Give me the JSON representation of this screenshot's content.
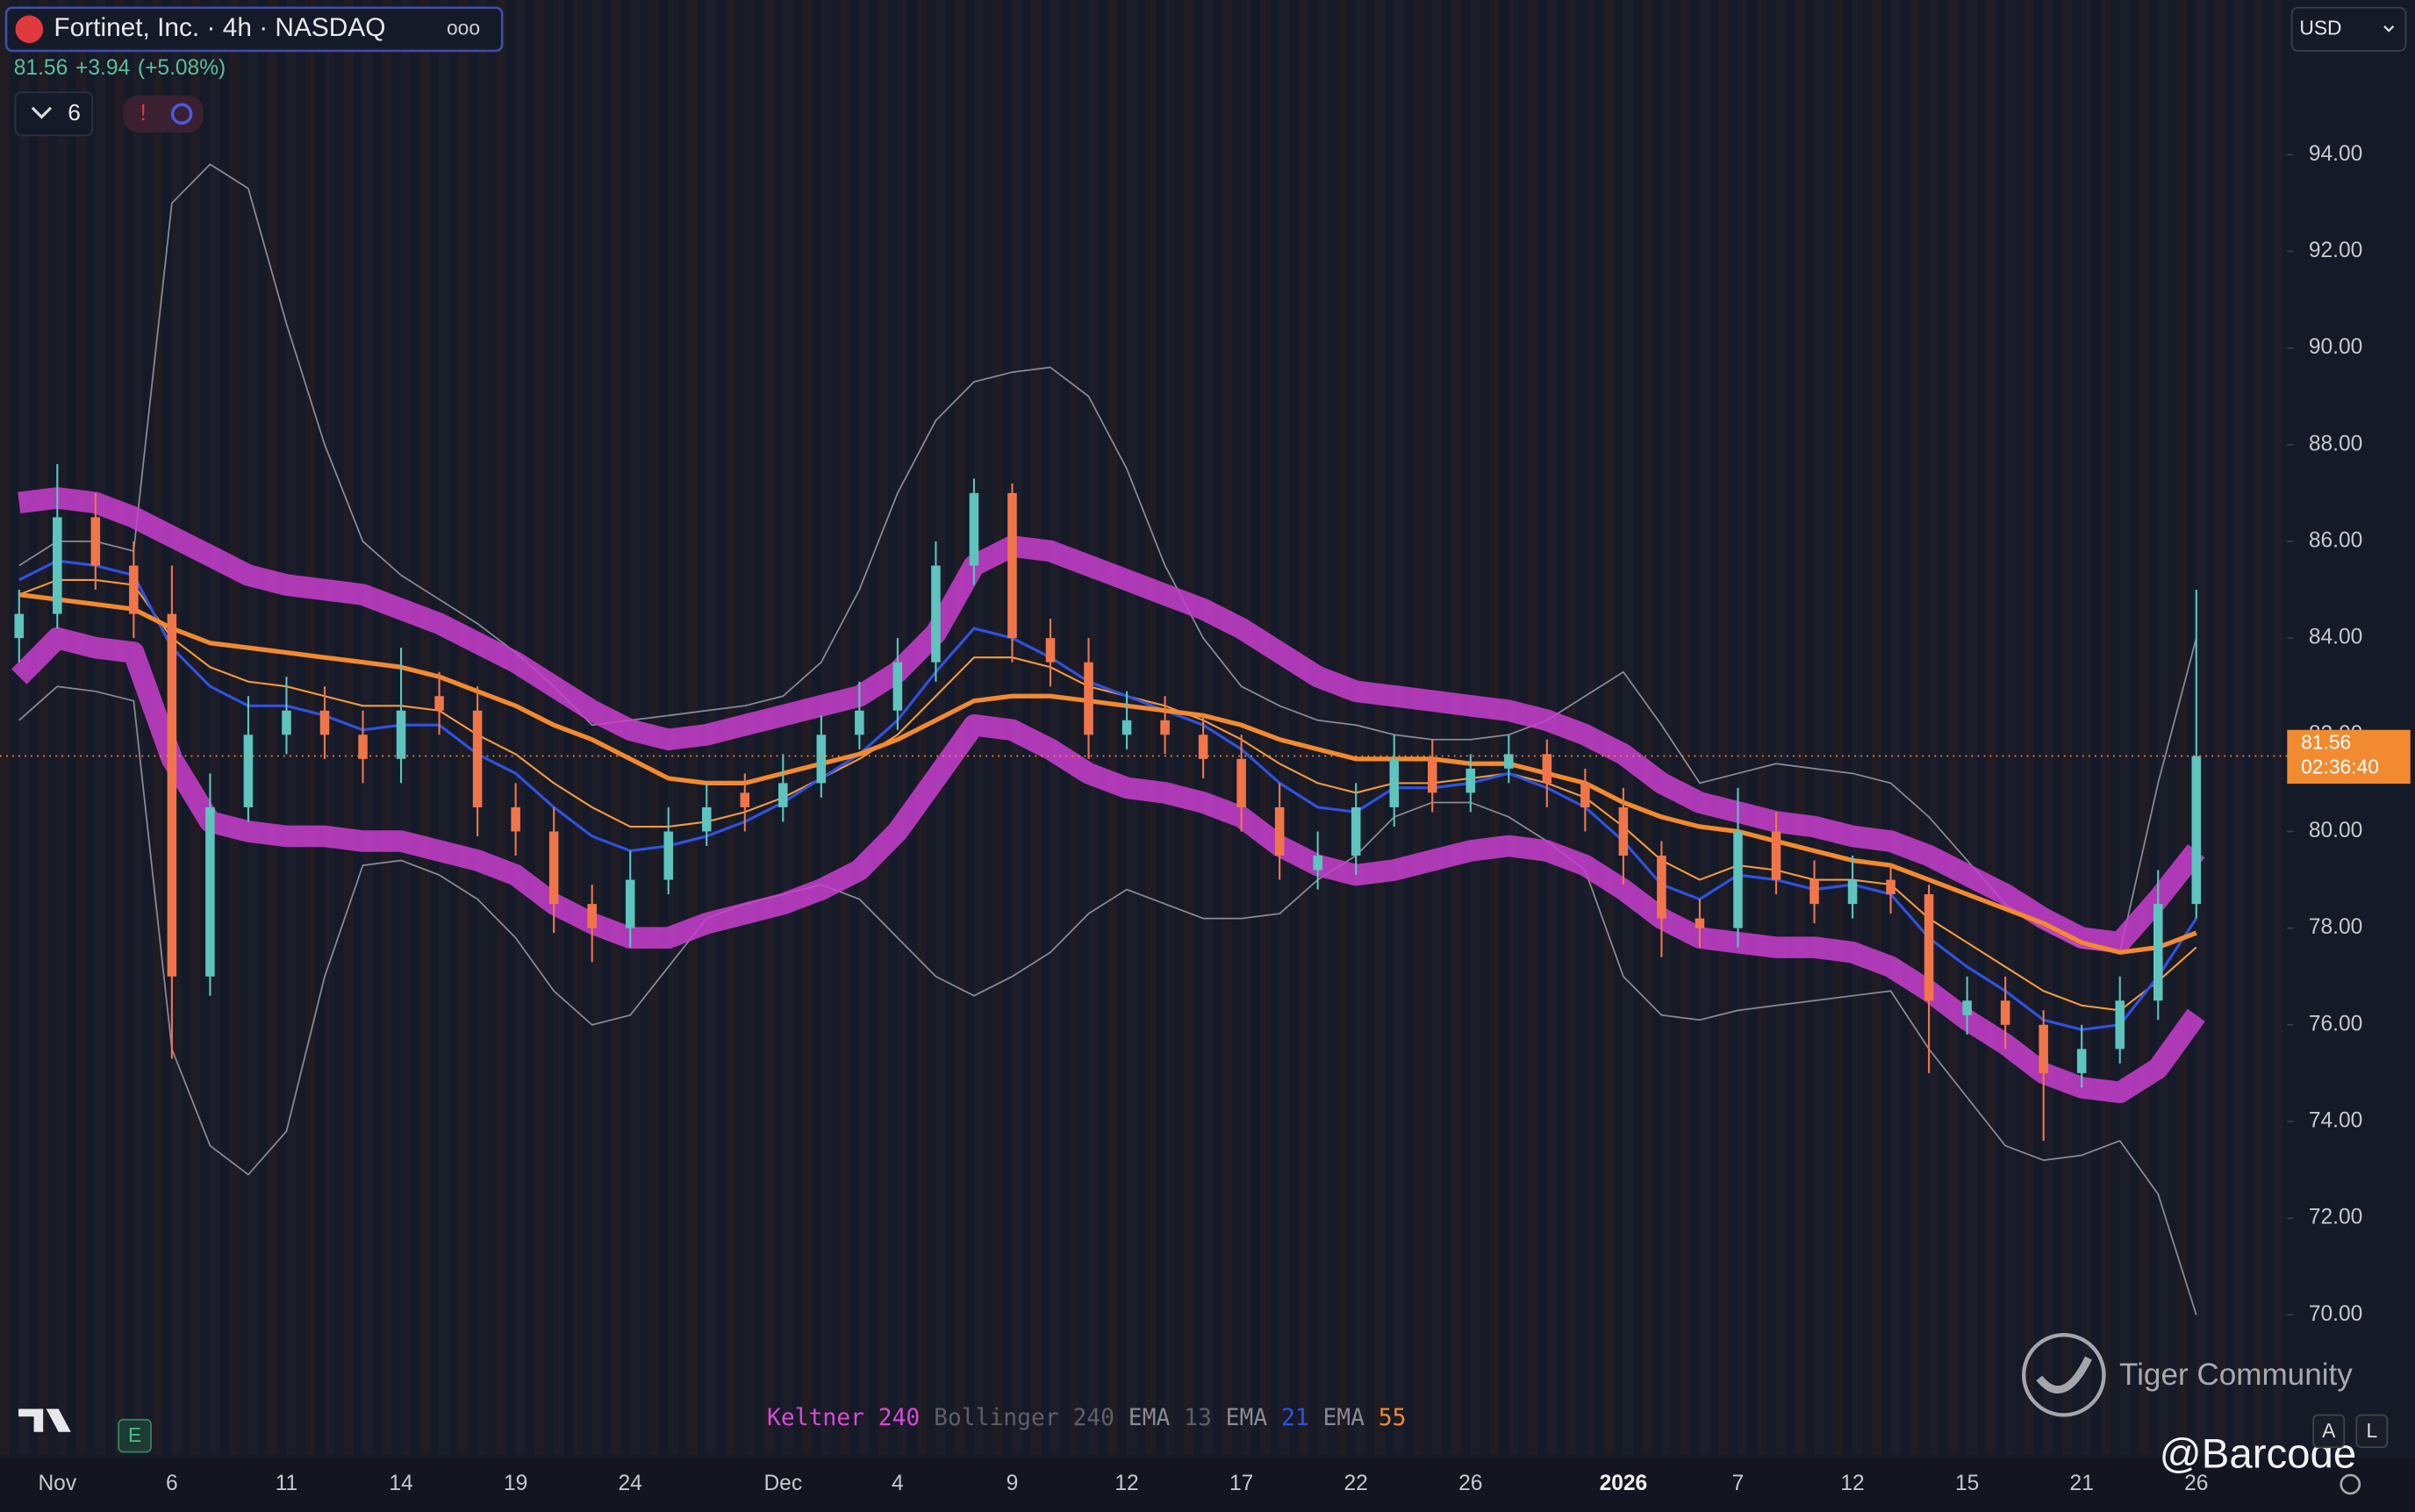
{
  "header": {
    "title": "Fortinet, Inc. · 4h · NASDAQ",
    "change": "+3.94",
    "change_pct": "(+5.08%)",
    "indicator_count": 6,
    "currency": "USD"
  },
  "chart_data": {
    "type": "candlestick",
    "categories": [
      null,
      "Nov",
      null,
      null,
      "6",
      null,
      null,
      "11",
      null,
      null,
      "14",
      null,
      null,
      "19",
      null,
      null,
      "24",
      null,
      null,
      null,
      "Dec",
      null,
      null,
      "4",
      null,
      null,
      "9",
      null,
      null,
      "12",
      null,
      null,
      "17",
      null,
      null,
      "22",
      null,
      null,
      "26",
      null,
      null,
      null,
      "2026",
      null,
      null,
      "7",
      null,
      null,
      "12",
      null,
      null,
      "15",
      null,
      null,
      "21",
      null,
      null,
      "26"
    ],
    "open": [
      84.0,
      84.5,
      86.5,
      85.5,
      84.5,
      77.0,
      80.5,
      82.0,
      82.5,
      82.0,
      81.5,
      82.8,
      82.5,
      80.5,
      80.0,
      78.5,
      78.0,
      79.0,
      80.0,
      80.8,
      80.5,
      81.0,
      82.0,
      82.5,
      83.5,
      85.5,
      87.0,
      84.0,
      83.5,
      82.0,
      82.3,
      82.0,
      81.5,
      80.5,
      79.2,
      79.5,
      80.5,
      81.5,
      80.8,
      81.3,
      81.6,
      81.0,
      80.5,
      79.5,
      78.2,
      78.0,
      80.0,
      79.0,
      78.5,
      79.0,
      78.7,
      76.2,
      76.5,
      76.0,
      75.0,
      75.5,
      76.5,
      78.5
    ],
    "high": [
      85.0,
      87.6,
      87.0,
      86.0,
      85.5,
      81.2,
      82.8,
      83.2,
      83.0,
      82.5,
      83.8,
      83.3,
      83.0,
      81.0,
      80.5,
      78.9,
      79.6,
      80.5,
      81.0,
      81.2,
      81.6,
      82.4,
      83.1,
      84.0,
      86.0,
      87.3,
      87.2,
      84.4,
      84.0,
      82.9,
      82.8,
      82.4,
      82.0,
      81.0,
      80.0,
      81.0,
      82.0,
      81.9,
      81.6,
      82.0,
      81.9,
      81.3,
      80.9,
      79.8,
      78.6,
      80.9,
      80.4,
      79.4,
      79.5,
      79.3,
      78.9,
      77.0,
      77.0,
      76.3,
      76.0,
      77.0,
      79.2,
      85.0
    ],
    "low": [
      83.5,
      84.2,
      85.0,
      84.0,
      75.3,
      76.6,
      80.2,
      81.6,
      81.5,
      81.0,
      81.0,
      82.0,
      79.9,
      79.5,
      77.9,
      77.3,
      77.6,
      78.7,
      79.7,
      80.0,
      80.2,
      80.7,
      81.7,
      82.1,
      83.1,
      85.1,
      83.5,
      83.0,
      81.5,
      81.7,
      81.6,
      81.1,
      80.0,
      79.0,
      78.8,
      79.1,
      80.1,
      80.4,
      80.4,
      81.0,
      80.5,
      80.0,
      78.9,
      77.4,
      77.6,
      77.6,
      78.7,
      78.1,
      78.2,
      78.3,
      75.0,
      75.8,
      75.5,
      73.6,
      74.7,
      75.2,
      76.1,
      78.2
    ],
    "close": [
      84.5,
      86.5,
      85.5,
      84.5,
      77.0,
      80.5,
      82.0,
      82.5,
      82.0,
      81.5,
      82.5,
      82.5,
      80.5,
      80.0,
      78.5,
      78.0,
      79.0,
      80.0,
      80.5,
      80.5,
      81.0,
      82.0,
      82.5,
      83.5,
      85.5,
      87.0,
      84.0,
      83.5,
      82.0,
      82.3,
      82.0,
      81.5,
      80.5,
      79.5,
      79.5,
      80.5,
      81.5,
      80.8,
      81.3,
      81.6,
      81.0,
      80.5,
      79.5,
      78.2,
      78.0,
      80.0,
      79.0,
      78.5,
      79.0,
      78.7,
      76.5,
      76.5,
      76.0,
      75.0,
      75.5,
      76.5,
      78.5,
      81.56
    ],
    "up_color": "#5ec4bd",
    "down_color": "#f0764a",
    "price_line_color": "#f28a30",
    "countdown": "02:36:40",
    "series": [
      {
        "color": "#8a8a94",
        "width": 1,
        "values": [
          85.5,
          86.0,
          86.0,
          85.8,
          93.0,
          93.8,
          93.3,
          90.5,
          88.0,
          86.0,
          85.3,
          84.8,
          84.3,
          83.7,
          83.0,
          82.2,
          82.3,
          82.4,
          82.5,
          82.6,
          82.8,
          83.5,
          85.0,
          87.0,
          88.5,
          89.3,
          89.5,
          89.6,
          89.0,
          87.5,
          85.5,
          84.0,
          83.0,
          82.6,
          82.3,
          82.2,
          82.0,
          81.9,
          81.9,
          82.0,
          82.3,
          82.8,
          83.3,
          82.2,
          81.0,
          81.2,
          81.4,
          81.3,
          81.2,
          81.0,
          80.3,
          79.4,
          78.5,
          78.0,
          77.6,
          77.5,
          81.0,
          84.0
        ]
      },
      {
        "color": "#8a8a94",
        "width": 1,
        "values": [
          82.3,
          83.0,
          82.9,
          82.7,
          75.5,
          73.5,
          72.9,
          73.8,
          77.0,
          79.3,
          79.4,
          79.1,
          78.6,
          77.8,
          76.7,
          76.0,
          76.2,
          77.2,
          78.2,
          78.5,
          78.7,
          78.9,
          78.6,
          77.8,
          77.0,
          76.6,
          77.0,
          77.5,
          78.3,
          78.8,
          78.5,
          78.2,
          78.2,
          78.3,
          79.0,
          79.5,
          80.3,
          80.6,
          80.6,
          80.3,
          79.8,
          79.2,
          77.0,
          76.2,
          76.1,
          76.3,
          76.4,
          76.5,
          76.6,
          76.7,
          75.5,
          74.5,
          73.5,
          73.2,
          73.3,
          73.6,
          72.5,
          70.0
        ]
      },
      {
        "color": "#c93fcf",
        "width": 14,
        "values": [
          86.8,
          86.9,
          86.8,
          86.5,
          86.1,
          85.7,
          85.3,
          85.1,
          85.0,
          84.9,
          84.6,
          84.3,
          83.9,
          83.5,
          83.0,
          82.5,
          82.1,
          81.9,
          82.0,
          82.2,
          82.4,
          82.6,
          82.8,
          83.3,
          84.1,
          85.5,
          85.9,
          85.8,
          85.5,
          85.2,
          84.9,
          84.6,
          84.2,
          83.7,
          83.2,
          82.9,
          82.8,
          82.7,
          82.6,
          82.5,
          82.3,
          82.0,
          81.6,
          81.0,
          80.6,
          80.4,
          80.2,
          80.1,
          79.9,
          79.8,
          79.5,
          79.1,
          78.7,
          78.2,
          77.8,
          77.7,
          78.6,
          79.6
        ]
      },
      {
        "color": "#c93fcf",
        "width": 14,
        "values": [
          83.2,
          84.0,
          83.8,
          83.7,
          81.5,
          80.2,
          80.0,
          79.9,
          79.9,
          79.8,
          79.8,
          79.6,
          79.4,
          79.1,
          78.5,
          78.1,
          77.8,
          77.8,
          78.1,
          78.3,
          78.5,
          78.8,
          79.2,
          80.0,
          81.1,
          82.2,
          82.1,
          81.7,
          81.2,
          80.9,
          80.8,
          80.6,
          80.3,
          79.7,
          79.3,
          79.1,
          79.2,
          79.4,
          79.6,
          79.7,
          79.6,
          79.3,
          78.8,
          78.2,
          77.8,
          77.7,
          77.6,
          77.6,
          77.5,
          77.2,
          76.7,
          76.1,
          75.6,
          75.0,
          74.7,
          74.6,
          75.1,
          76.2
        ]
      },
      {
        "color": "#f39a3d",
        "width": 1.2,
        "values": [
          84.9,
          85.2,
          85.2,
          85.1,
          84.0,
          83.4,
          83.1,
          83.0,
          82.8,
          82.6,
          82.6,
          82.5,
          82.0,
          81.6,
          81.0,
          80.5,
          80.1,
          80.1,
          80.2,
          80.4,
          80.7,
          81.1,
          81.5,
          82.0,
          82.8,
          83.6,
          83.6,
          83.4,
          83.0,
          82.8,
          82.6,
          82.3,
          81.9,
          81.4,
          81.0,
          80.8,
          81.0,
          81.0,
          81.1,
          81.2,
          81.0,
          80.7,
          80.1,
          79.4,
          79.0,
          79.3,
          79.2,
          79.0,
          79.0,
          78.9,
          78.2,
          77.7,
          77.2,
          76.7,
          76.4,
          76.3,
          76.9,
          77.6
        ]
      },
      {
        "color": "#2f52e0",
        "width": 1.8,
        "values": [
          85.2,
          85.6,
          85.5,
          85.3,
          83.8,
          83.0,
          82.6,
          82.6,
          82.4,
          82.1,
          82.2,
          82.2,
          81.6,
          81.2,
          80.5,
          79.9,
          79.6,
          79.7,
          79.9,
          80.2,
          80.6,
          81.1,
          81.6,
          82.3,
          83.3,
          84.2,
          84.0,
          83.6,
          83.1,
          82.8,
          82.5,
          82.2,
          81.7,
          81.0,
          80.5,
          80.4,
          80.9,
          80.9,
          81.0,
          81.2,
          80.9,
          80.5,
          79.8,
          78.9,
          78.6,
          79.1,
          79.0,
          78.8,
          78.9,
          78.7,
          77.8,
          77.2,
          76.7,
          76.1,
          75.9,
          76.0,
          77.0,
          78.2
        ]
      },
      {
        "color": "#f28a30",
        "width": 3,
        "values": [
          84.9,
          84.8,
          84.7,
          84.6,
          84.2,
          83.9,
          83.8,
          83.7,
          83.6,
          83.5,
          83.4,
          83.2,
          82.9,
          82.6,
          82.2,
          81.9,
          81.5,
          81.1,
          81.0,
          81.0,
          81.2,
          81.4,
          81.6,
          81.9,
          82.3,
          82.7,
          82.8,
          82.8,
          82.7,
          82.6,
          82.5,
          82.4,
          82.2,
          81.9,
          81.7,
          81.5,
          81.5,
          81.5,
          81.4,
          81.4,
          81.2,
          81.0,
          80.6,
          80.3,
          80.1,
          80.0,
          79.8,
          79.6,
          79.4,
          79.3,
          79.0,
          78.7,
          78.4,
          78.1,
          77.7,
          77.5,
          77.6,
          77.9
        ]
      }
    ],
    "ylim": [
      67.1,
      97.2
    ],
    "yticks": [
      {
        "value": 70,
        "label": "70.00"
      },
      {
        "value": 72,
        "label": "72.00"
      },
      {
        "value": 74,
        "label": "74.00"
      },
      {
        "value": 76,
        "label": "76.00"
      },
      {
        "value": 78,
        "label": "78.00"
      },
      {
        "value": 80,
        "label": "80.00"
      },
      {
        "value": 82,
        "label": "82.00"
      },
      {
        "value": 84,
        "label": "84.00"
      },
      {
        "value": 86,
        "label": "86.00"
      },
      {
        "value": 88,
        "label": "88.00"
      },
      {
        "value": 90,
        "label": "90.00"
      },
      {
        "value": 92,
        "label": "92.00"
      },
      {
        "value": 94,
        "label": "94.00"
      }
    ],
    "indicators": [
      {
        "name": "Keltner",
        "length": 240,
        "name_color": "#d84ad8",
        "color": "#d84ad8"
      },
      {
        "name": "Bollinger",
        "length": 240,
        "name_color": "#5f5f66",
        "color": "#5f5f66"
      },
      {
        "name": "EMA",
        "length": 13,
        "name_color": "#8a8a90",
        "color": "#5f5f66"
      },
      {
        "name": "EMA",
        "length": 21,
        "name_color": "#8a8a90",
        "color": "#2f52e0"
      },
      {
        "name": "EMA",
        "length": 55,
        "name_color": "#8a8a90",
        "color": "#f28a30"
      }
    ]
  },
  "watermark": {
    "brand": "Tiger Community",
    "handle": "@Barcode"
  },
  "toolbar": {
    "auto": "A",
    "log": "L",
    "earnings": "E"
  }
}
